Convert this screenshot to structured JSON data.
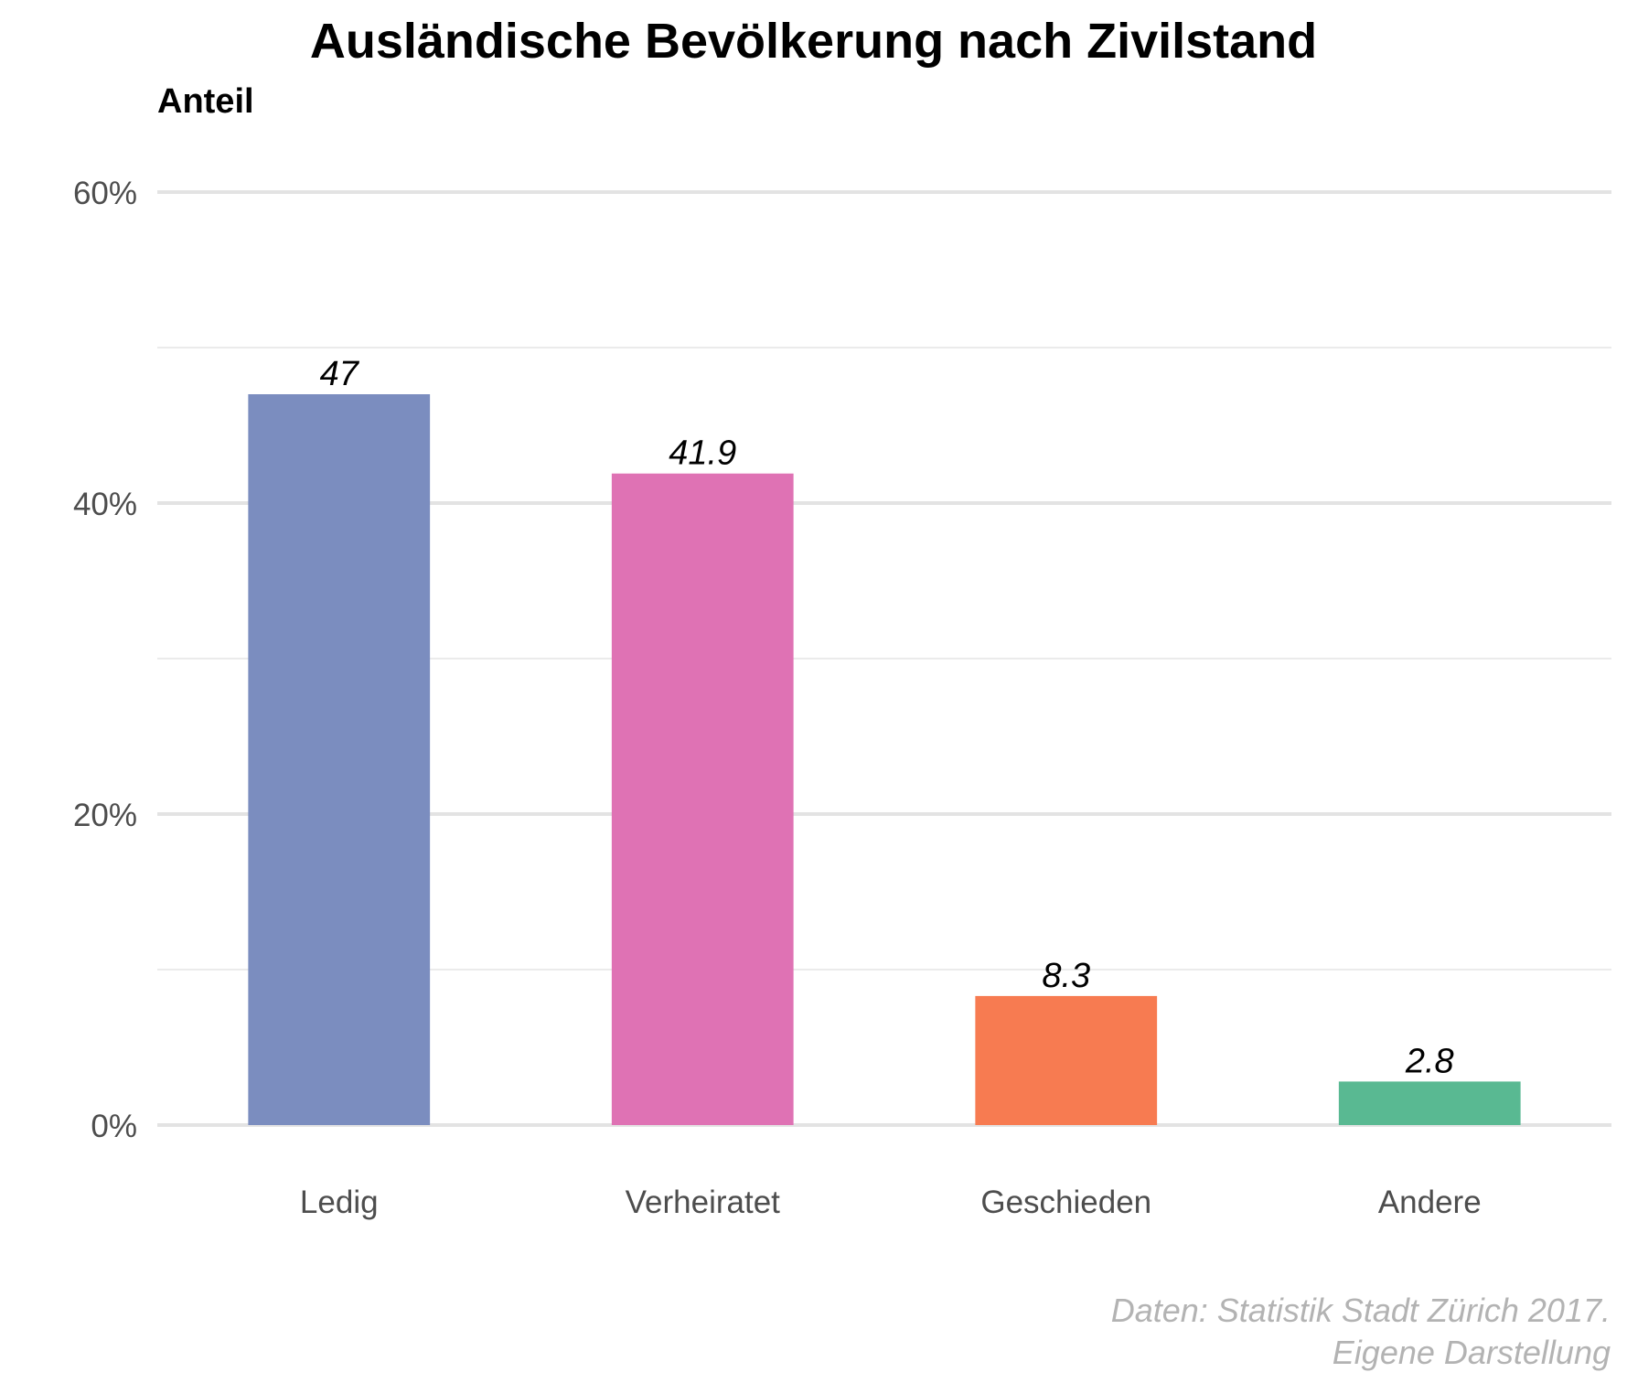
{
  "chart_data": {
    "type": "bar",
    "title": "Ausländische Bevölkerung nach Zivilstand",
    "ylabel": "Anteil",
    "xlabel": "",
    "categories": [
      "Ledig",
      "Verheiratet",
      "Geschieden",
      "Andere"
    ],
    "values": [
      47,
      41.9,
      8.3,
      2.8
    ],
    "data_labels": [
      "47",
      "41.9",
      "8.3",
      "2.8"
    ],
    "colors": [
      "#7b8dbf",
      "#df72b4",
      "#f77b51",
      "#59b992"
    ],
    "ylim": [
      0,
      60
    ],
    "yticks": [
      0,
      20,
      40,
      60
    ],
    "ytick_labels": [
      "0%",
      "20%",
      "40%",
      "60%"
    ],
    "grid": true,
    "legend": "none",
    "caption": [
      "Daten: Statistik Stadt Zürich 2017.",
      "Eigene Darstellung"
    ]
  }
}
